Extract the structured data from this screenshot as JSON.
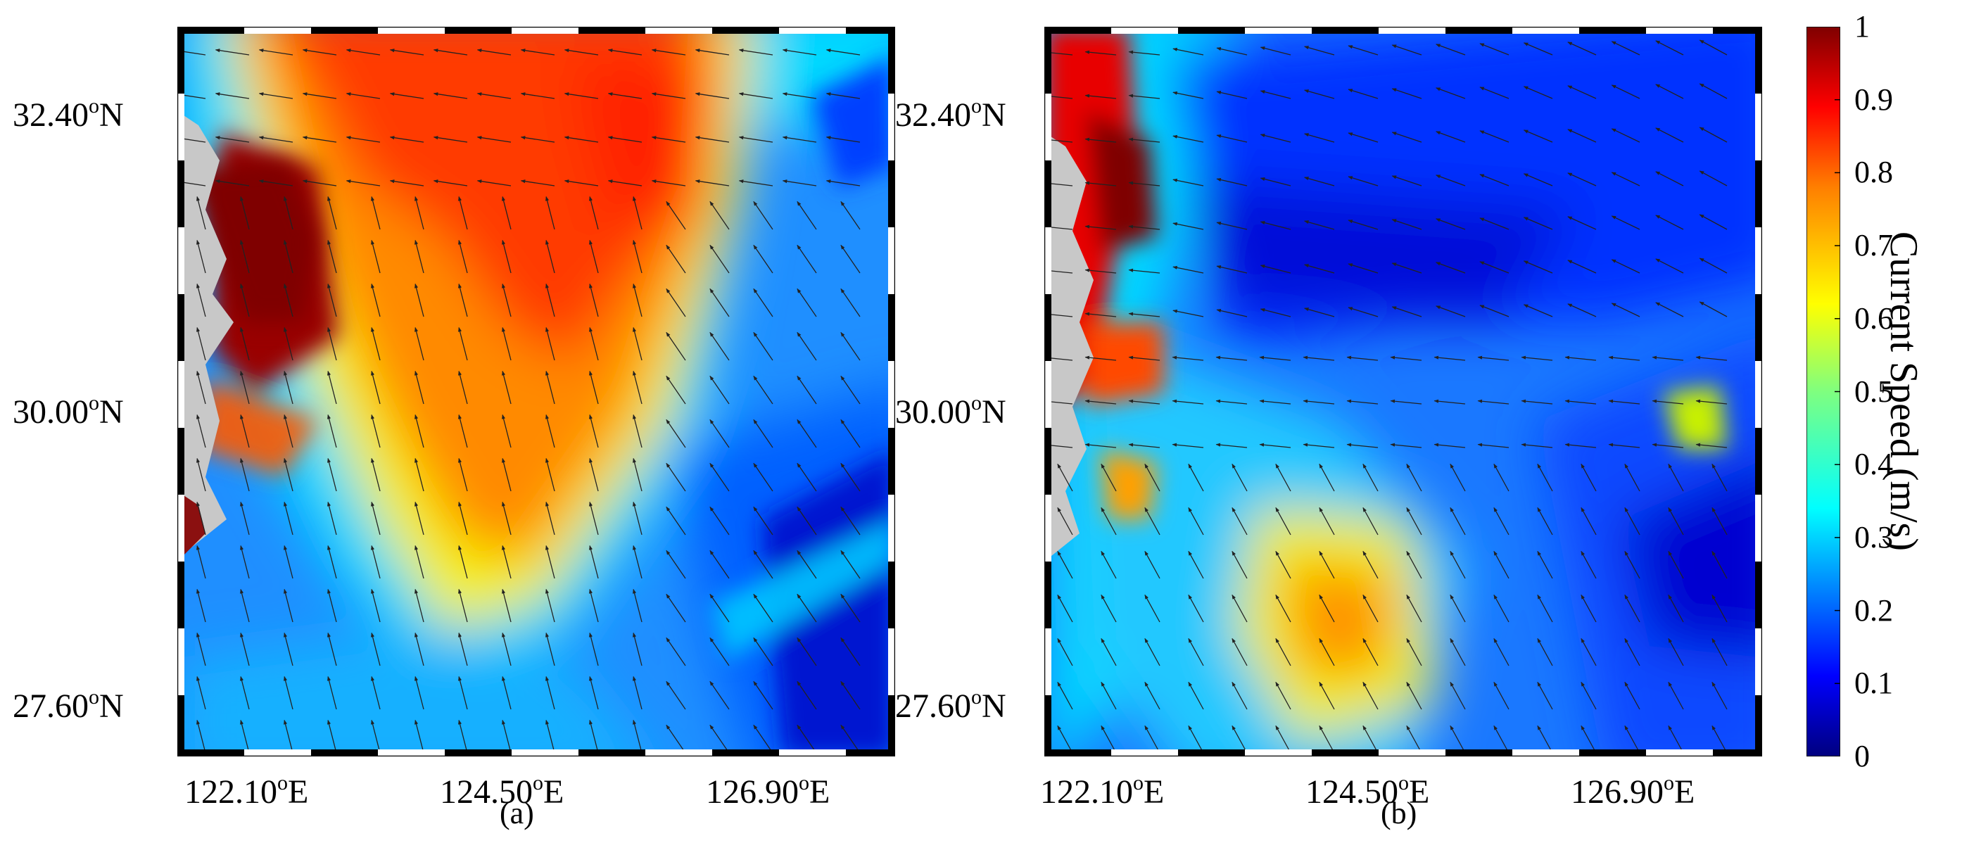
{
  "colorbar": {
    "title": "Current Speed (m/s)",
    "ticks": [
      "1",
      "0.9",
      "0.8",
      "0.7",
      "0.6",
      "0.5",
      "0.4",
      "0.3",
      "0.2",
      "0.1",
      "0"
    ],
    "range": [
      0,
      1
    ],
    "colors": [
      "#00007f",
      "#0000ff",
      "#007fff",
      "#00ffff",
      "#7fff7f",
      "#ffff00",
      "#ff7f00",
      "#ff0000",
      "#7f0000"
    ]
  },
  "panels": [
    {
      "label": "(a)",
      "lat_labels": [
        "32.40",
        "30.00",
        "27.60"
      ],
      "lon_labels": [
        "122.10",
        "124.50",
        "126.90"
      ],
      "lat_suffix": "N",
      "lon_suffix": "E",
      "degree_symbol": "o",
      "land_color": "#c8c8c8",
      "frame": "black-white alternating"
    },
    {
      "label": "(b)",
      "lat_labels": [
        "32.40",
        "30.00",
        "27.60"
      ],
      "lon_labels": [
        "122.10",
        "124.50",
        "126.90"
      ],
      "lat_suffix": "N",
      "lon_suffix": "E",
      "degree_symbol": "o",
      "land_color": "#c8c8c8",
      "frame": "black-white alternating"
    }
  ]
}
